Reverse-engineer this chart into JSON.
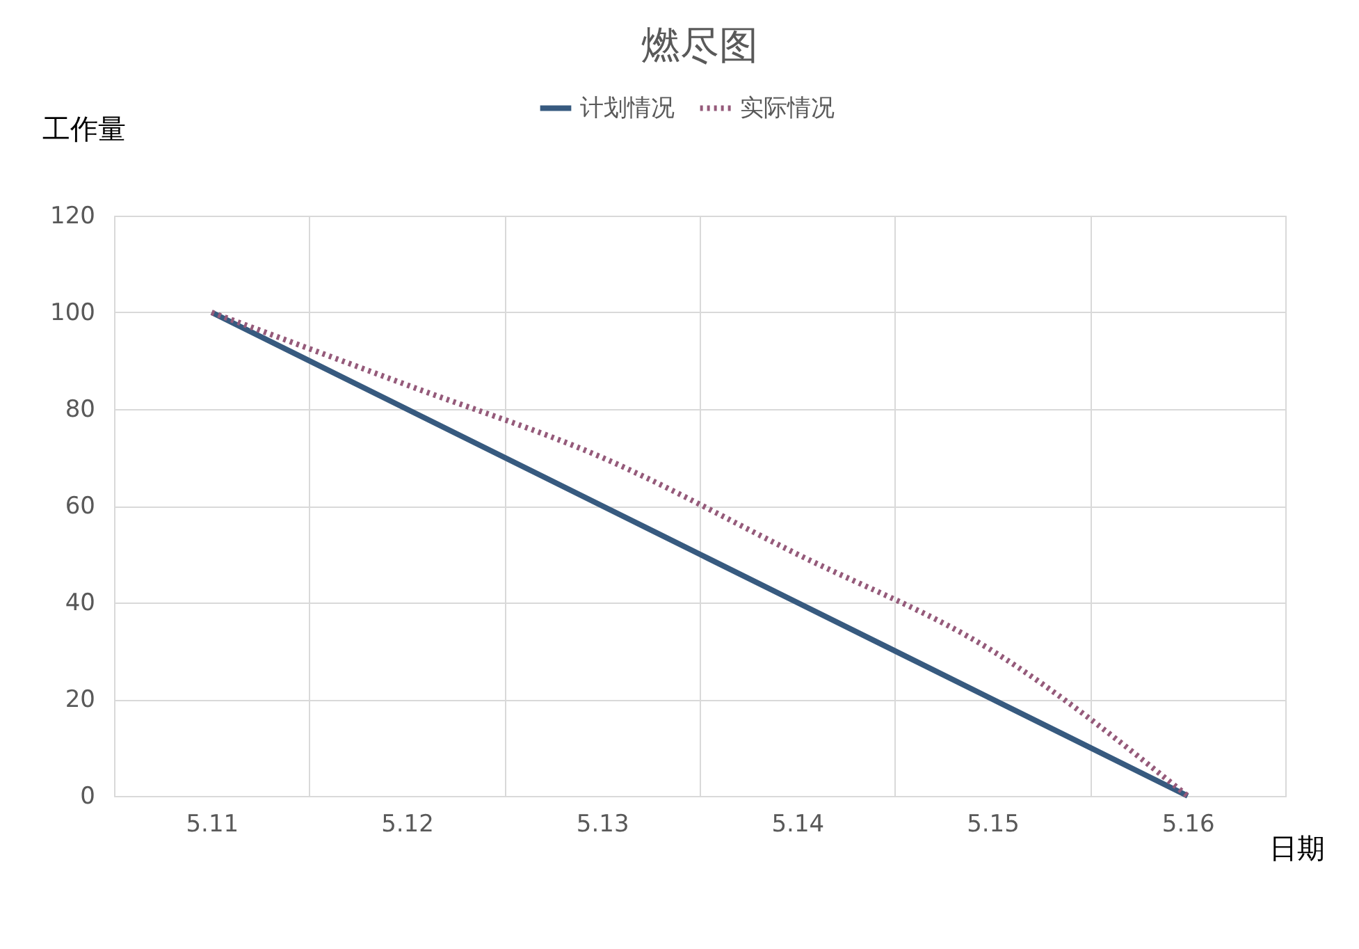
{
  "chart_data": {
    "type": "line",
    "title": "燃尽图",
    "xlabel": "日期",
    "ylabel": "工作量",
    "categories": [
      "5.11",
      "5.12",
      "5.13",
      "5.14",
      "5.15",
      "5.16"
    ],
    "series": [
      {
        "name": "计划情况",
        "color": "#375a7f",
        "values": [
          100,
          80,
          60,
          40,
          20,
          0
        ],
        "line_style": "solid"
      },
      {
        "name": "实际情况",
        "color": "#955a7a",
        "values": [
          100,
          85,
          70,
          50,
          30,
          0
        ],
        "line_style": "dotted"
      }
    ],
    "ylim": [
      0,
      120
    ],
    "yticks": [
      0,
      20,
      40,
      60,
      80,
      100,
      120
    ],
    "grid": true,
    "legend": "top",
    "marker": "none"
  }
}
